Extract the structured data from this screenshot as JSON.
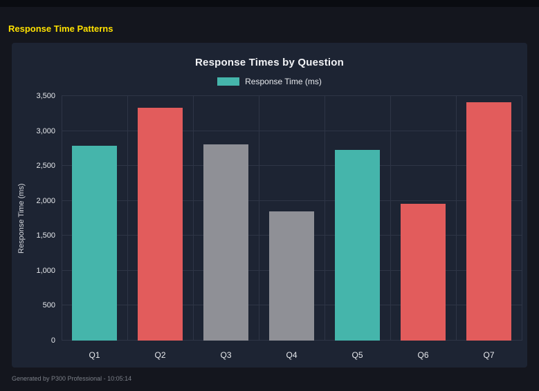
{
  "page": {
    "title": "Response Time Patterns",
    "footer": "Generated by P300 Professional - 10:05:14"
  },
  "colors": {
    "background": "#14161e",
    "panel": "#1d2433",
    "accent_yellow": "#ffe100",
    "grid": "#2e3546",
    "teal": "#45b5ab",
    "red": "#e25c5c",
    "gray": "#8f9096"
  },
  "chart_data": {
    "type": "bar",
    "title": "Response Times by Question",
    "legend": [
      {
        "label": "Response Time (ms)",
        "color": "#45b5ab"
      }
    ],
    "legend_position": "top",
    "categories": [
      "Q1",
      "Q2",
      "Q3",
      "Q4",
      "Q5",
      "Q6",
      "Q7"
    ],
    "values": [
      2790,
      3330,
      2810,
      1845,
      2730,
      1960,
      3410
    ],
    "bar_colors": [
      "#45b5ab",
      "#e25c5c",
      "#8f9096",
      "#8f9096",
      "#45b5ab",
      "#e25c5c",
      "#e25c5c"
    ],
    "xlabel": "",
    "ylabel": "Response Time (ms)",
    "ylim": [
      0,
      3500
    ],
    "yticks": [
      0,
      500,
      1000,
      1500,
      2000,
      2500,
      3000,
      3500
    ],
    "ytick_labels": [
      "0",
      "500",
      "1,000",
      "1,500",
      "2,000",
      "2,500",
      "3,000",
      "3,500"
    ],
    "grid": true
  }
}
